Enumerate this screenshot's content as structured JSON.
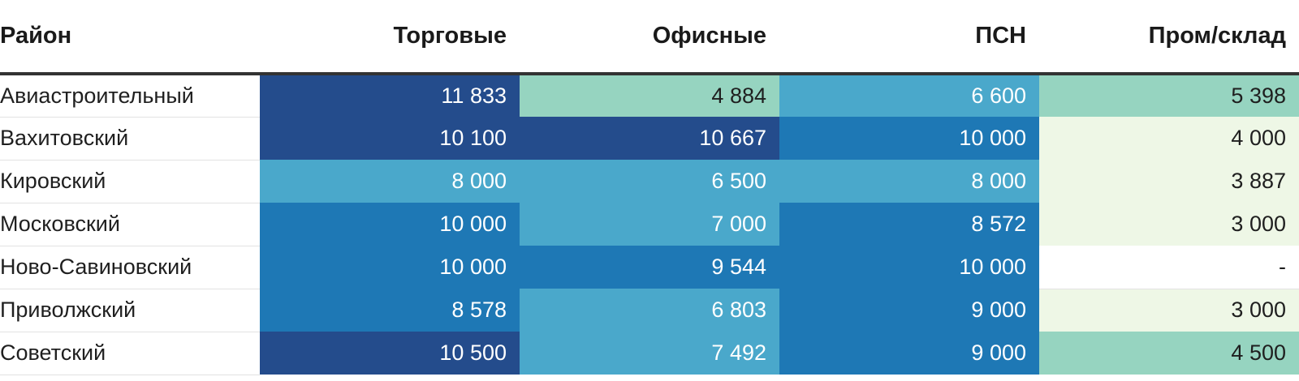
{
  "chart_data": {
    "type": "table",
    "header": {
      "rowlabel": "Район",
      "columns": [
        "Торговые",
        "Офисные",
        "ПСН",
        "Пром/склад"
      ]
    },
    "rows": [
      {
        "name": "Авиастроительный",
        "values": [
          "11 833",
          "4 884",
          "6 600",
          "5 398"
        ],
        "numbers": [
          11833,
          4884,
          6600,
          5398
        ]
      },
      {
        "name": "Вахитовский",
        "values": [
          "10 100",
          "10 667",
          "10 000",
          "4 000"
        ],
        "numbers": [
          10100,
          10667,
          10000,
          4000
        ]
      },
      {
        "name": "Кировский",
        "values": [
          "8 000",
          "6 500",
          "8 000",
          "3 887"
        ],
        "numbers": [
          8000,
          6500,
          8000,
          3887
        ]
      },
      {
        "name": "Московский",
        "values": [
          "10 000",
          "7 000",
          "8 572",
          "3 000"
        ],
        "numbers": [
          10000,
          7000,
          8572,
          3000
        ]
      },
      {
        "name": "Ново-Савиновский",
        "values": [
          "10 000",
          "9 544",
          "10 000",
          "-"
        ],
        "numbers": [
          10000,
          9544,
          10000,
          null
        ]
      },
      {
        "name": "Приволжский",
        "values": [
          "8 578",
          "6 803",
          "9 000",
          "3 000"
        ],
        "numbers": [
          8578,
          6803,
          9000,
          3000
        ]
      },
      {
        "name": "Советский",
        "values": [
          "10 500",
          "7 492",
          "9 000",
          "4 500"
        ],
        "numbers": [
          10500,
          7492,
          9000,
          4500
        ]
      }
    ],
    "color_scale": [
      {
        "min": 0,
        "bg": "#eef7e6",
        "fg": "#1f1f1f"
      },
      {
        "min": 4500,
        "bg": "#96d4c0",
        "fg": "#1f1f1f"
      },
      {
        "min": 6500,
        "bg": "#4aa8cb",
        "fg": "#ffffff"
      },
      {
        "min": 8500,
        "bg": "#1e78b5",
        "fg": "#ffffff"
      },
      {
        "min": 10100,
        "bg": "#244c8c",
        "fg": "#ffffff"
      }
    ],
    "empty_bg": "#ffffff",
    "empty_fg": "#1f1f1f"
  }
}
